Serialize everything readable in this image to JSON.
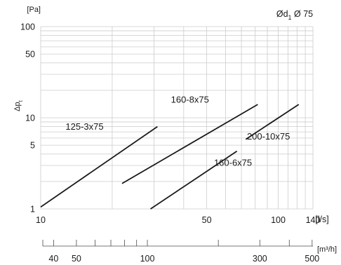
{
  "chart_data": {
    "type": "line",
    "title": "",
    "diameter_label": {
      "prefix": "Ød",
      "subscript": "1",
      "value": "Ø 75"
    },
    "xscale": "log",
    "yscale": "log",
    "xlim": [
      10,
      140
    ],
    "ylim": [
      1,
      100
    ],
    "ylabel": {
      "main": "Δp",
      "subscript": "t"
    },
    "yunit": "[Pa]",
    "xunit": "[l/s]",
    "x2unit": "[m³/h]",
    "x_tick_labels": [
      {
        "value": 10,
        "label": "10"
      },
      {
        "value": 50,
        "label": "50"
      },
      {
        "value": 100,
        "label": "100"
      },
      {
        "value": 140,
        "label": "140"
      }
    ],
    "y_tick_labels": [
      {
        "value": 1,
        "label": "1"
      },
      {
        "value": 5,
        "label": "5"
      },
      {
        "value": 10,
        "label": "10"
      },
      {
        "value": 50,
        "label": "50"
      },
      {
        "value": 100,
        "label": "100"
      }
    ],
    "x2_ticks": [
      40,
      50,
      60,
      70,
      80,
      90,
      100,
      200,
      300,
      400,
      500
    ],
    "x2_tick_labels": [
      {
        "value": 40,
        "label": "40"
      },
      {
        "value": 50,
        "label": "50"
      },
      {
        "value": 100,
        "label": "100"
      },
      {
        "value": 300,
        "label": "300"
      },
      {
        "value": 500,
        "label": "500"
      }
    ],
    "grid": true,
    "legend": "none",
    "series": [
      {
        "name": "125-3x75",
        "x": [
          10,
          31
        ],
        "y": [
          1.05,
          8.0
        ]
      },
      {
        "name": "160-8x75",
        "x": [
          22,
          82
        ],
        "y": [
          1.9,
          14.0
        ]
      },
      {
        "name": "160-6x75",
        "x": [
          29,
          67
        ],
        "y": [
          1.0,
          4.3
        ]
      },
      {
        "name": "200-10x75",
        "x": [
          73,
          122
        ],
        "y": [
          5.8,
          14.0
        ]
      }
    ],
    "label_positions": [
      {
        "name": "125-3x75",
        "x": 15.3,
        "y": 7.4
      },
      {
        "name": "160-8x75",
        "x": 42.5,
        "y": 14.6
      },
      {
        "name": "160-6x75",
        "x": 64.5,
        "y": 2.96
      },
      {
        "name": "200-10x75",
        "x": 91,
        "y": 5.75
      }
    ]
  },
  "colors": {
    "series": "#1a1a1a",
    "grid": "#cccccc",
    "axis": "#4a4a4a"
  }
}
